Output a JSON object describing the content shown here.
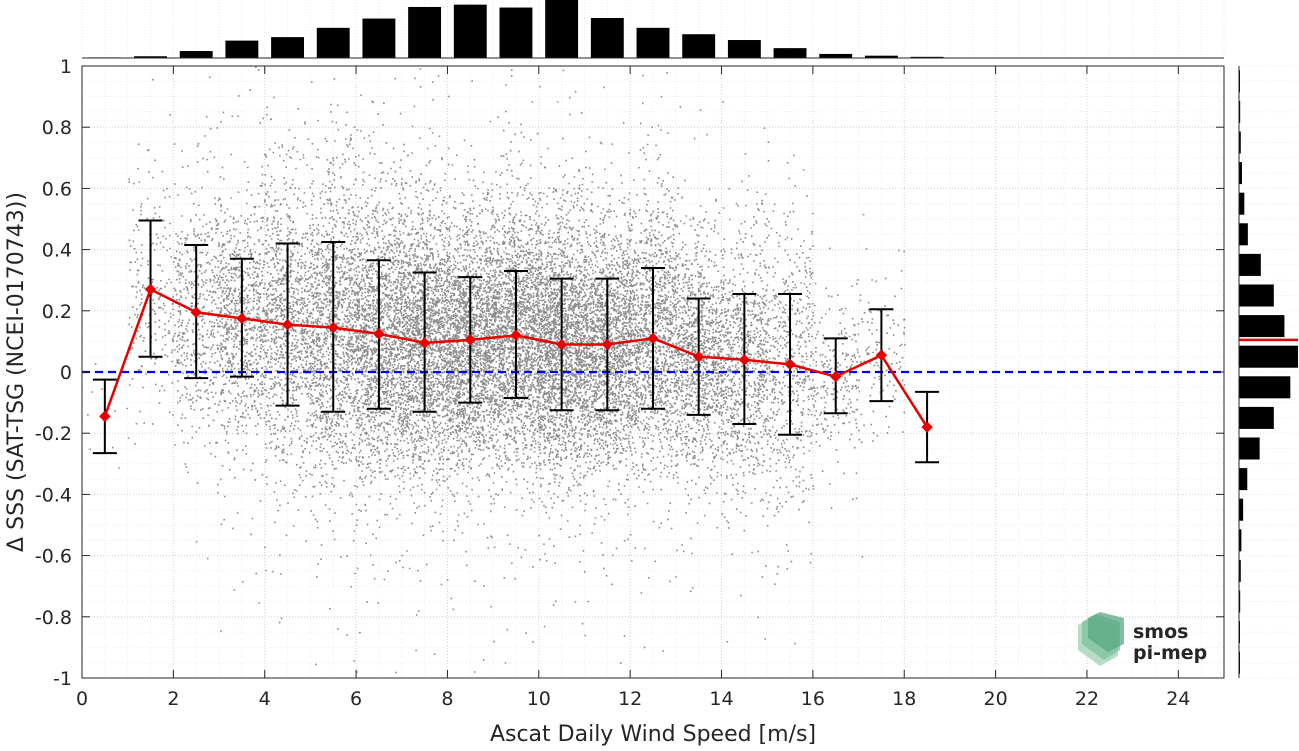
{
  "chart_data": {
    "type": "scatter",
    "title": "",
    "xlabel": "Ascat Daily Wind Speed [m/s]",
    "ylabel": "Δ SSS (SAT-TSG (NCEI-0170743))",
    "xlim": [
      0,
      25
    ],
    "ylim": [
      -1,
      1
    ],
    "x_ticks": [
      0,
      2,
      4,
      6,
      8,
      10,
      12,
      14,
      16,
      18,
      20,
      22,
      24
    ],
    "x_tick_labels": [
      "0",
      "2",
      "4",
      "6",
      "8",
      "10",
      "12",
      "14",
      "16",
      "18",
      "20",
      "22",
      "24"
    ],
    "y_ticks": [
      1,
      0.8,
      0.6,
      0.4,
      0.2,
      0,
      -0.2,
      -0.4,
      -0.6,
      -0.8,
      -1
    ],
    "y_tick_labels": [
      "1",
      "0.8",
      "0.6",
      "0.4",
      "0.2",
      "0",
      "-0.2",
      "-0.4",
      "-0.6",
      "-0.8",
      "-1"
    ],
    "grid": true,
    "zero_line": {
      "y": 0,
      "color": "#0000e6",
      "style": "dashed"
    },
    "scatter_color": "#808080",
    "scatter_density": [
      {
        "x": 0.5,
        "mean": -0.12,
        "sd": 0.12,
        "n": 10
      },
      {
        "x": 1.5,
        "mean": 0.27,
        "sd": 0.18,
        "n": 220
      },
      {
        "x": 2.5,
        "mean": 0.19,
        "sd": 0.2,
        "n": 520
      },
      {
        "x": 3.5,
        "mean": 0.17,
        "sd": 0.2,
        "n": 900
      },
      {
        "x": 4.5,
        "mean": 0.16,
        "sd": 0.23,
        "n": 1050
      },
      {
        "x": 5.5,
        "mean": 0.15,
        "sd": 0.24,
        "n": 1400
      },
      {
        "x": 6.5,
        "mean": 0.12,
        "sd": 0.22,
        "n": 1750
      },
      {
        "x": 7.5,
        "mean": 0.1,
        "sd": 0.21,
        "n": 2000
      },
      {
        "x": 8.5,
        "mean": 0.1,
        "sd": 0.19,
        "n": 2050
      },
      {
        "x": 9.5,
        "mean": 0.12,
        "sd": 0.2,
        "n": 2000
      },
      {
        "x": 10.5,
        "mean": 0.09,
        "sd": 0.2,
        "n": 2200
      },
      {
        "x": 11.5,
        "mean": 0.09,
        "sd": 0.19,
        "n": 1850
      },
      {
        "x": 12.5,
        "mean": 0.11,
        "sd": 0.21,
        "n": 1400
      },
      {
        "x": 13.5,
        "mean": 0.05,
        "sd": 0.18,
        "n": 1150
      },
      {
        "x": 14.5,
        "mean": 0.04,
        "sd": 0.2,
        "n": 900
      },
      {
        "x": 15.5,
        "mean": 0.02,
        "sd": 0.22,
        "n": 560
      },
      {
        "x": 16.5,
        "mean": -0.01,
        "sd": 0.12,
        "n": 230
      },
      {
        "x": 17.5,
        "mean": 0.06,
        "sd": 0.15,
        "n": 120
      }
    ],
    "series": [
      {
        "type": "line-errorbar",
        "color": "#e60000",
        "x": [
          0.5,
          1.5,
          2.5,
          3.5,
          4.5,
          5.5,
          6.5,
          7.5,
          8.5,
          9.5,
          10.5,
          11.5,
          12.5,
          13.5,
          14.5,
          15.5,
          16.5,
          17.5,
          18.5
        ],
        "y": [
          -0.145,
          0.27,
          0.195,
          0.175,
          0.155,
          0.145,
          0.125,
          0.095,
          0.105,
          0.12,
          0.09,
          0.09,
          0.11,
          0.05,
          0.04,
          0.025,
          -0.015,
          0.055,
          -0.18
        ],
        "err_low": [
          -0.265,
          0.05,
          -0.02,
          -0.015,
          -0.11,
          -0.13,
          -0.12,
          -0.13,
          -0.1,
          -0.085,
          -0.125,
          -0.125,
          -0.12,
          -0.14,
          -0.17,
          -0.205,
          -0.135,
          -0.095,
          -0.295
        ],
        "err_high": [
          -0.025,
          0.495,
          0.415,
          0.37,
          0.42,
          0.425,
          0.365,
          0.325,
          0.31,
          0.33,
          0.305,
          0.305,
          0.34,
          0.24,
          0.255,
          0.255,
          0.11,
          0.205,
          -0.065
        ]
      }
    ],
    "top_histogram": {
      "bins": [
        0.5,
        1.5,
        2.5,
        3.5,
        4.5,
        5.5,
        6.5,
        7.5,
        8.5,
        9.5,
        10.5,
        11.5,
        12.5,
        13.5,
        14.5,
        15.5,
        16.5,
        17.5,
        18.5
      ],
      "relative": [
        0.01,
        0.03,
        0.12,
        0.3,
        0.36,
        0.52,
        0.68,
        0.88,
        0.92,
        0.87,
        1.0,
        0.69,
        0.52,
        0.41,
        0.31,
        0.17,
        0.07,
        0.04,
        0.02
      ],
      "color": "#000000"
    },
    "right_histogram": {
      "bins": [
        0.95,
        0.85,
        0.75,
        0.65,
        0.55,
        0.45,
        0.35,
        0.25,
        0.15,
        0.05,
        -0.05,
        -0.15,
        -0.25,
        -0.35,
        -0.45,
        -0.55,
        -0.65,
        -0.75,
        -0.85,
        -0.95
      ],
      "relative": [
        0.01,
        0.02,
        0.03,
        0.05,
        0.09,
        0.15,
        0.37,
        0.59,
        0.77,
        1.0,
        0.87,
        0.59,
        0.35,
        0.14,
        0.07,
        0.04,
        0.03,
        0.02,
        0.01,
        0.01
      ],
      "mean_line": {
        "y": 0.105,
        "color": "#e60000"
      },
      "color": "#000000"
    }
  },
  "logo": {
    "line1": "smos",
    "line2": "pi-mep",
    "color": "#6fae8c"
  }
}
